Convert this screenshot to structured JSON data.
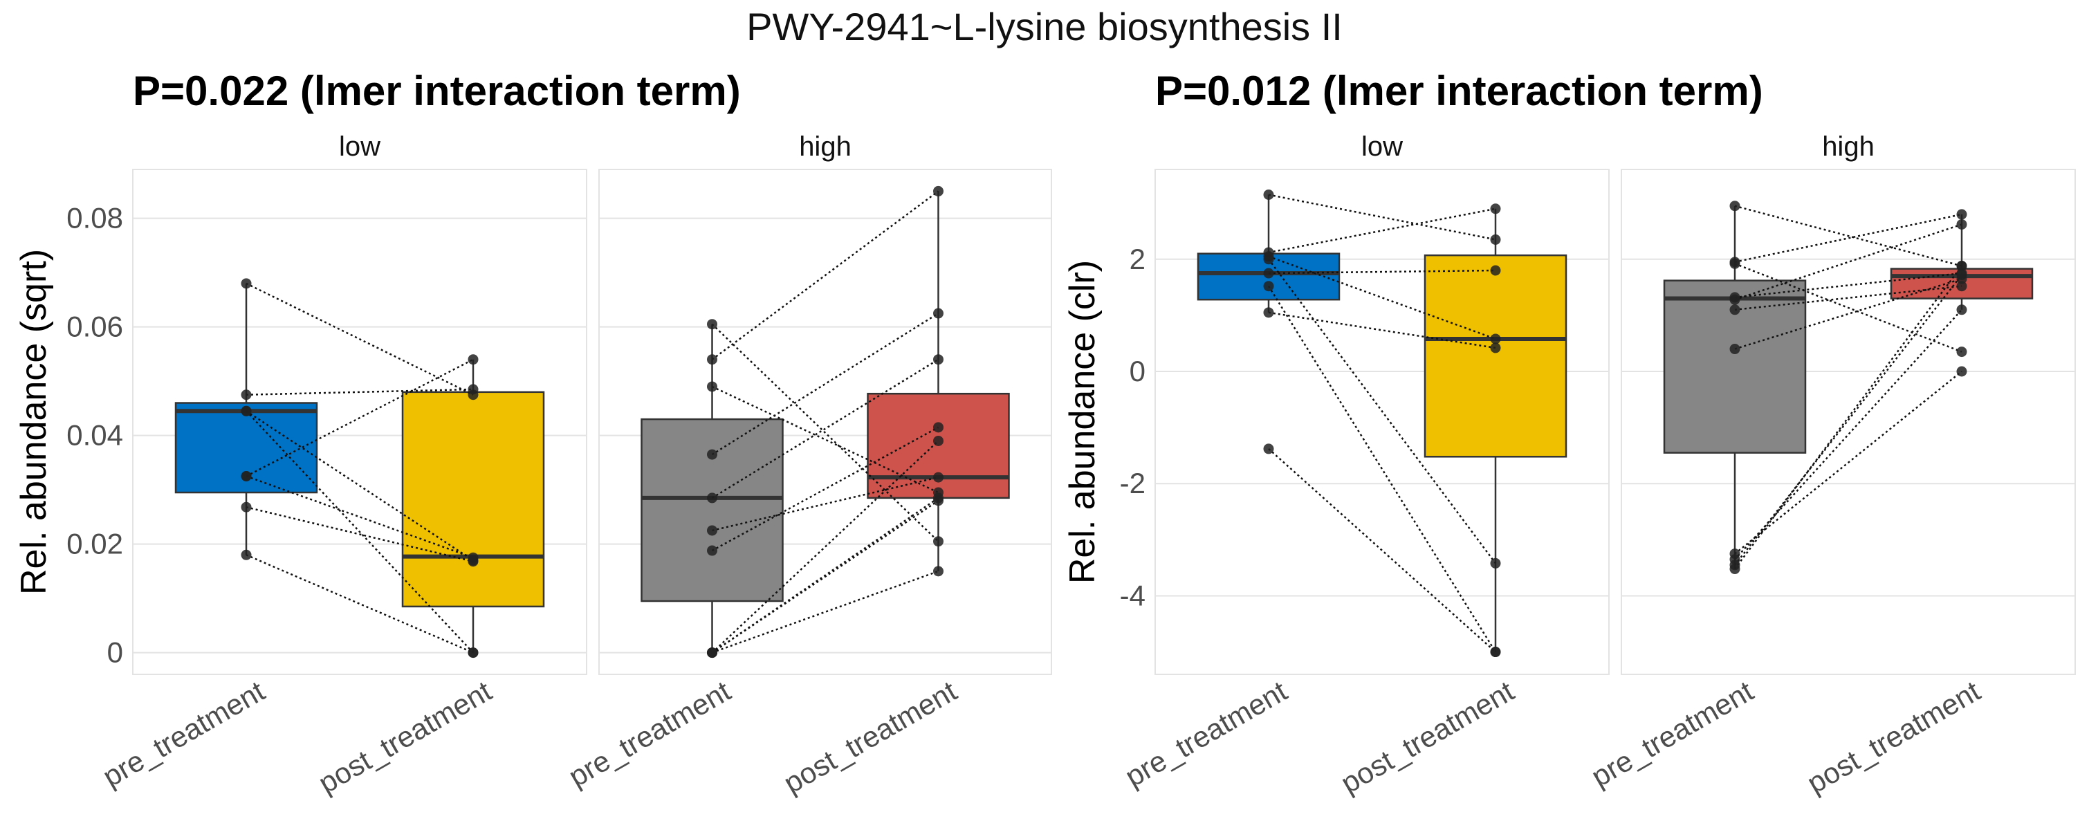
{
  "figure_title": "PWY-2941~L-lysine biosynthesis II",
  "chart_data": [
    {
      "type": "boxplot",
      "subtitle": "P=0.022 (lmer interaction term)",
      "ylabel": "Rel. abundance (sqrt)",
      "ylim": [
        -0.004,
        0.089
      ],
      "yticks": [
        0,
        0.02,
        0.04,
        0.06,
        0.08
      ],
      "ytick_labels": [
        "0",
        "0.02",
        "0.04",
        "0.06",
        "0.08"
      ],
      "categories": [
        "pre_treatment",
        "post_treatment"
      ],
      "facets": [
        {
          "label": "low",
          "boxes": [
            {
              "category": "pre_treatment",
              "color": "#0072C6",
              "q1": 0.0295,
              "median": 0.0445,
              "q3": 0.046,
              "whisker_low": 0.018,
              "whisker_high": 0.068
            },
            {
              "category": "post_treatment",
              "color": "#EFC000",
              "q1": 0.0085,
              "median": 0.0177,
              "q3": 0.048,
              "whisker_low": 0.0,
              "whisker_high": 0.054
            }
          ],
          "pairs": [
            [
              0.068,
              0.0475
            ],
            [
              0.0475,
              0.0485
            ],
            [
              0.0445,
              0.017
            ],
            [
              0.0445,
              0.0
            ],
            [
              0.0325,
              0.054
            ],
            [
              0.0325,
              0.0175
            ],
            [
              0.0268,
              0.0168
            ],
            [
              0.018,
              0.0
            ]
          ]
        },
        {
          "label": "high",
          "boxes": [
            {
              "category": "pre_treatment",
              "color": "#868686",
              "q1": 0.0095,
              "median": 0.0285,
              "q3": 0.043,
              "whisker_low": 0.0,
              "whisker_high": 0.0605
            },
            {
              "category": "post_treatment",
              "color": "#CD534C",
              "q1": 0.0285,
              "median": 0.0323,
              "q3": 0.0477,
              "whisker_low": 0.015,
              "whisker_high": 0.085
            }
          ],
          "pairs": [
            [
              0.0605,
              0.0205
            ],
            [
              0.054,
              0.085
            ],
            [
              0.049,
              0.0295
            ],
            [
              0.0365,
              0.0625
            ],
            [
              0.0285,
              0.054
            ],
            [
              0.0225,
              0.0323
            ],
            [
              0.0188,
              0.0415
            ],
            [
              0.0,
              0.039
            ],
            [
              0.0,
              0.028
            ],
            [
              0.0,
              0.015
            ],
            [
              0.0,
              0.0285
            ]
          ]
        }
      ]
    },
    {
      "type": "boxplot",
      "subtitle": "P=0.012 (lmer interaction term)",
      "ylabel": "Rel. abundance (clr)",
      "ylim": [
        -5.4,
        3.6
      ],
      "yticks": [
        -4,
        -2,
        0,
        2
      ],
      "ytick_labels": [
        "-4",
        "-2",
        "0",
        "2"
      ],
      "categories": [
        "pre_treatment",
        "post_treatment"
      ],
      "facets": [
        {
          "label": "low",
          "boxes": [
            {
              "category": "pre_treatment",
              "color": "#0072C6",
              "q1": 1.28,
              "median": 1.75,
              "q3": 2.1,
              "whisker_low": 1.05,
              "whisker_high": 3.15
            },
            {
              "category": "post_treatment",
              "color": "#EFC000",
              "q1": -1.52,
              "median": 0.58,
              "q3": 2.07,
              "whisker_low": -5.0,
              "whisker_high": 2.9
            }
          ],
          "pairs": [
            [
              3.15,
              2.35
            ],
            [
              2.12,
              2.9
            ],
            [
              2.05,
              0.58
            ],
            [
              2.0,
              -3.42
            ],
            [
              1.75,
              1.8
            ],
            [
              1.52,
              -5.0
            ],
            [
              1.05,
              0.42
            ],
            [
              -1.38,
              -5.0
            ]
          ]
        },
        {
          "label": "high",
          "boxes": [
            {
              "category": "pre_treatment",
              "color": "#868686",
              "q1": -1.45,
              "median": 1.3,
              "q3": 1.62,
              "whisker_low": -3.52,
              "whisker_high": 2.95
            },
            {
              "category": "post_treatment",
              "color": "#CD534C",
              "q1": 1.3,
              "median": 1.7,
              "q3": 1.83,
              "whisker_low": 1.1,
              "whisker_high": 2.8
            }
          ],
          "pairs": [
            [
              2.95,
              1.88
            ],
            [
              1.95,
              2.8
            ],
            [
              1.92,
              0.35
            ],
            [
              1.32,
              1.75
            ],
            [
              1.28,
              2.62
            ],
            [
              1.1,
              1.52
            ],
            [
              0.4,
              1.65
            ],
            [
              -3.25,
              0.0
            ],
            [
              -3.35,
              1.1
            ],
            [
              -3.45,
              1.72
            ],
            [
              -3.52,
              1.88
            ]
          ]
        }
      ]
    }
  ]
}
